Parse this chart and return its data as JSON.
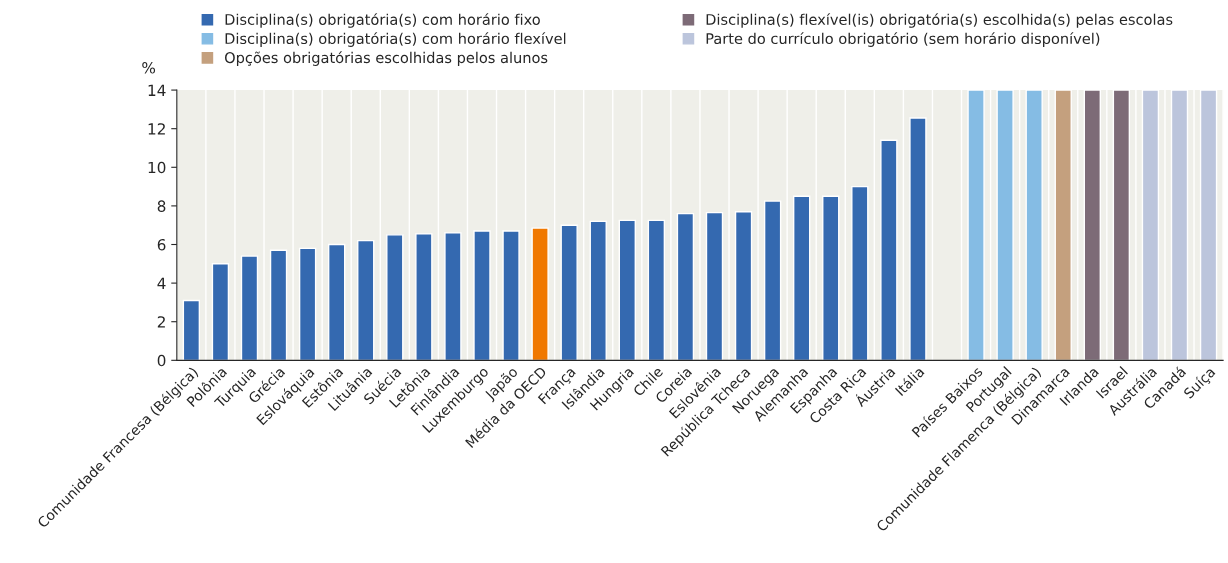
{
  "chart_data": {
    "type": "bar",
    "ylabel": "%",
    "categories": [
      "Comunidade Francesa (Bélgica)",
      "Polônia",
      "Turquia",
      "Grécia",
      "Eslováquia",
      "Estônia",
      "Lituânia",
      "Suécia",
      "Letônia",
      "Finlândia",
      "Luxemburgo",
      "Japão",
      "Média da OECD",
      "França",
      "Islândia",
      "Hungria",
      "Chile",
      "Coreia",
      "Eslovênia",
      "República Tcheca",
      "Noruega",
      "Alemanha",
      "Espanha",
      "Costa Rica",
      "Áustria",
      "Itália",
      null,
      "Países Baixos",
      "Portugal",
      "Comunidade Flamenca (Bélgica)",
      "Dinamarca",
      "Irlanda",
      "Israel",
      "Austrália",
      "Canadá",
      "Suíça"
    ],
    "series": [
      {
        "name": "Disciplina(s) obrigatória(s) com horário fixo",
        "color": "#3469b0",
        "values": [
          3.1,
          5.0,
          5.4,
          5.7,
          5.8,
          6.0,
          6.2,
          6.5,
          6.55,
          6.6,
          6.7,
          6.7,
          null,
          7.0,
          7.2,
          7.25,
          7.25,
          7.6,
          7.65,
          7.7,
          8.25,
          8.5,
          8.5,
          9.0,
          11.4,
          12.55,
          null,
          null,
          null,
          null,
          null,
          null,
          null,
          null,
          null,
          null
        ]
      },
      {
        "name": "Disciplina(s) obrigatória(s) com horário flexível",
        "color": "#85bce4",
        "values": [
          null,
          null,
          null,
          null,
          null,
          null,
          null,
          null,
          null,
          null,
          null,
          null,
          null,
          null,
          null,
          null,
          null,
          null,
          null,
          null,
          null,
          null,
          null,
          null,
          null,
          null,
          null,
          14,
          14,
          14,
          null,
          null,
          null,
          null,
          null,
          null
        ]
      },
      {
        "name": "Opções obrigatórias escolhidas pelos alunos",
        "color": "#c4a07e",
        "values": [
          null,
          null,
          null,
          null,
          null,
          null,
          null,
          null,
          null,
          null,
          null,
          null,
          null,
          null,
          null,
          null,
          null,
          null,
          null,
          null,
          null,
          null,
          null,
          null,
          null,
          null,
          null,
          null,
          null,
          null,
          14,
          null,
          null,
          null,
          null,
          null
        ]
      },
      {
        "name": "Disciplina(s) flexível(is) obrigatória(s) escolhida(s) pelas escolas",
        "color": "#7d6b77",
        "values": [
          null,
          null,
          null,
          null,
          null,
          null,
          null,
          null,
          null,
          null,
          null,
          null,
          null,
          null,
          null,
          null,
          null,
          null,
          null,
          null,
          null,
          null,
          null,
          null,
          null,
          null,
          null,
          null,
          null,
          null,
          null,
          14,
          14,
          null,
          null,
          null
        ]
      },
      {
        "name": "Parte do currículo obrigatório (sem horário disponível)",
        "color": "#bcc5dc",
        "values": [
          null,
          null,
          null,
          null,
          null,
          null,
          null,
          null,
          null,
          null,
          null,
          null,
          null,
          null,
          null,
          null,
          null,
          null,
          null,
          null,
          null,
          null,
          null,
          null,
          null,
          null,
          null,
          null,
          null,
          null,
          null,
          null,
          null,
          14,
          14,
          14
        ]
      },
      {
        "color": "#f07800",
        "values": [
          null,
          null,
          null,
          null,
          null,
          null,
          null,
          null,
          null,
          null,
          null,
          null,
          6.85,
          null,
          null,
          null,
          null,
          null,
          null,
          null,
          null,
          null,
          null,
          null,
          null,
          null,
          null,
          null,
          null,
          null,
          null,
          null,
          null,
          null,
          null,
          null
        ]
      }
    ],
    "ylim": [
      0,
      14
    ],
    "yticks": [
      0,
      2,
      4,
      6,
      8,
      10,
      12,
      14
    ],
    "legend": "top"
  }
}
